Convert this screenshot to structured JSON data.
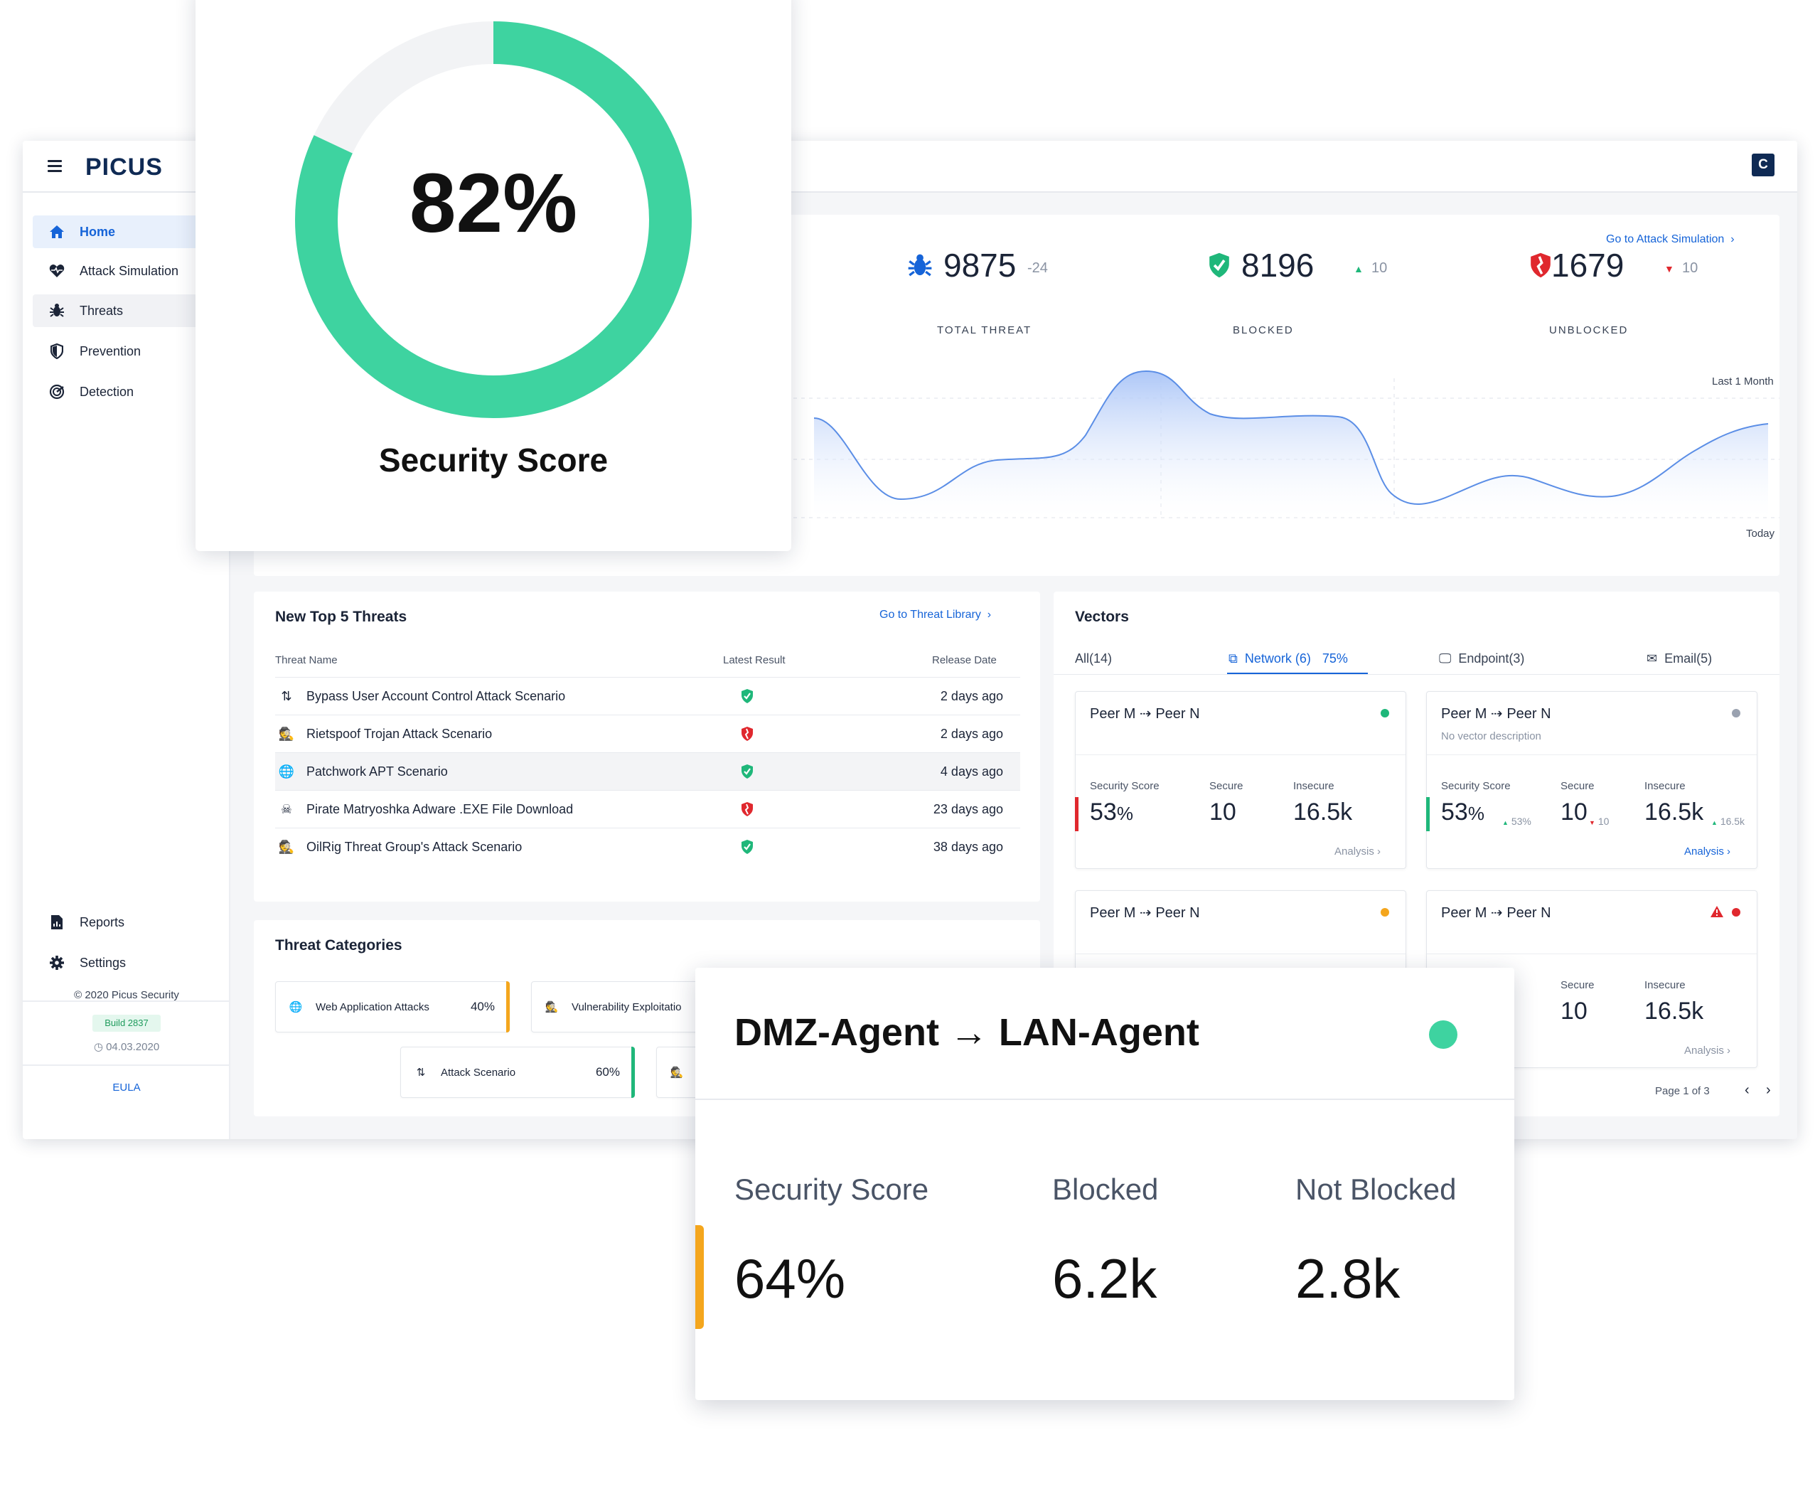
{
  "app": {
    "logo": "PICUS",
    "user_initial": "C"
  },
  "sidebar": {
    "items": [
      {
        "label": "Home",
        "icon": "home-icon"
      },
      {
        "label": "Attack Simulation",
        "icon": "heartbeat-icon"
      },
      {
        "label": "Threats",
        "icon": "bug-icon"
      },
      {
        "label": "Prevention",
        "icon": "shield-icon"
      },
      {
        "label": "Detection",
        "icon": "radar-icon"
      }
    ],
    "bottom_items": [
      {
        "label": "Reports",
        "icon": "report-icon"
      },
      {
        "label": "Settings",
        "icon": "gear-icon"
      }
    ],
    "copyright": "©  2020 Picus Security",
    "build": "Build 2837",
    "date": "04.03.2020",
    "eula": "EULA"
  },
  "stats": {
    "link": "Go to Attack Simulation",
    "total": {
      "value": "9875",
      "delta": "-24",
      "label": "TOTAL THREAT"
    },
    "blocked": {
      "value": "8196",
      "delta": "10",
      "label": "BLOCKED"
    },
    "unblocked": {
      "value": "1679",
      "delta": "10",
      "label": "UNBLOCKED"
    },
    "range_label": "Last 1 Month",
    "today_label": "Today"
  },
  "threats": {
    "title": "New Top 5 Threats",
    "link": "Go to Threat Library",
    "headers": {
      "name": "Threat Name",
      "result": "Latest Result",
      "date": "Release Date"
    },
    "rows": [
      {
        "name": "Bypass User Account Control Attack Scenario",
        "result": "blocked",
        "date": "2 days ago",
        "icon": "arrows-updown-icon"
      },
      {
        "name": "Rietspoof Trojan Attack Scenario",
        "result": "unblocked",
        "date": "2 days ago",
        "icon": "spy-icon"
      },
      {
        "name": "Patchwork APT Scenario",
        "result": "blocked",
        "date": "4 days ago",
        "icon": "globe-icon"
      },
      {
        "name": "Pirate Matryoshka Adware .EXE File Download",
        "result": "unblocked",
        "date": "23 days ago",
        "icon": "skull-icon"
      },
      {
        "name": "OilRig Threat Group's Attack Scenario",
        "result": "blocked",
        "date": "38 days ago",
        "icon": "spy-icon"
      }
    ]
  },
  "categories": {
    "title": "Threat Categories",
    "items": [
      {
        "label": "Web Application Attacks",
        "pct": "40%",
        "color": "#f4a61d",
        "icon": "globe-icon"
      },
      {
        "label": "Vulnerability Exploitatio",
        "pct": "",
        "color": "#f4a61d",
        "icon": "spy-icon"
      },
      {
        "label": "Attack Scenario",
        "pct": "60%",
        "color": "#1fb77a",
        "icon": "arrows-updown-icon"
      }
    ]
  },
  "vectors": {
    "title": "Vectors",
    "tabs": [
      {
        "label": "All(14)"
      },
      {
        "label": "Network (6)",
        "extra": "75%"
      },
      {
        "label": "Endpoint(3)"
      },
      {
        "label": "Email(5)"
      }
    ],
    "card_title": "Peer M ⇢ Peer N",
    "no_desc": "No vector description",
    "labels": {
      "score": "Security Score",
      "secure": "Secure",
      "insecure": "Insecure"
    },
    "score": "53",
    "secure": "10",
    "insecure": "16.5k",
    "mini_score": "53%",
    "mini_secure": "10",
    "mini_insecure": "16.5k",
    "analysis": "Analysis",
    "pagination": "Page 1 of 3"
  },
  "score_card": {
    "value": "82%",
    "label": "Security Score",
    "percent": 82,
    "ring_color": "#3ed3a0"
  },
  "agent_card": {
    "title": "DMZ-Agent → LAN-Agent",
    "score_label": "Security Score",
    "score_value": "64%",
    "blocked_label": "Blocked",
    "blocked_value": "6.2k",
    "not_blocked_label": "Not Blocked",
    "not_blocked_value": "2.8k"
  },
  "colors": {
    "accent": "#1664d8",
    "green": "#1fb77a",
    "red": "#e0282e",
    "orange": "#f4a61d"
  }
}
